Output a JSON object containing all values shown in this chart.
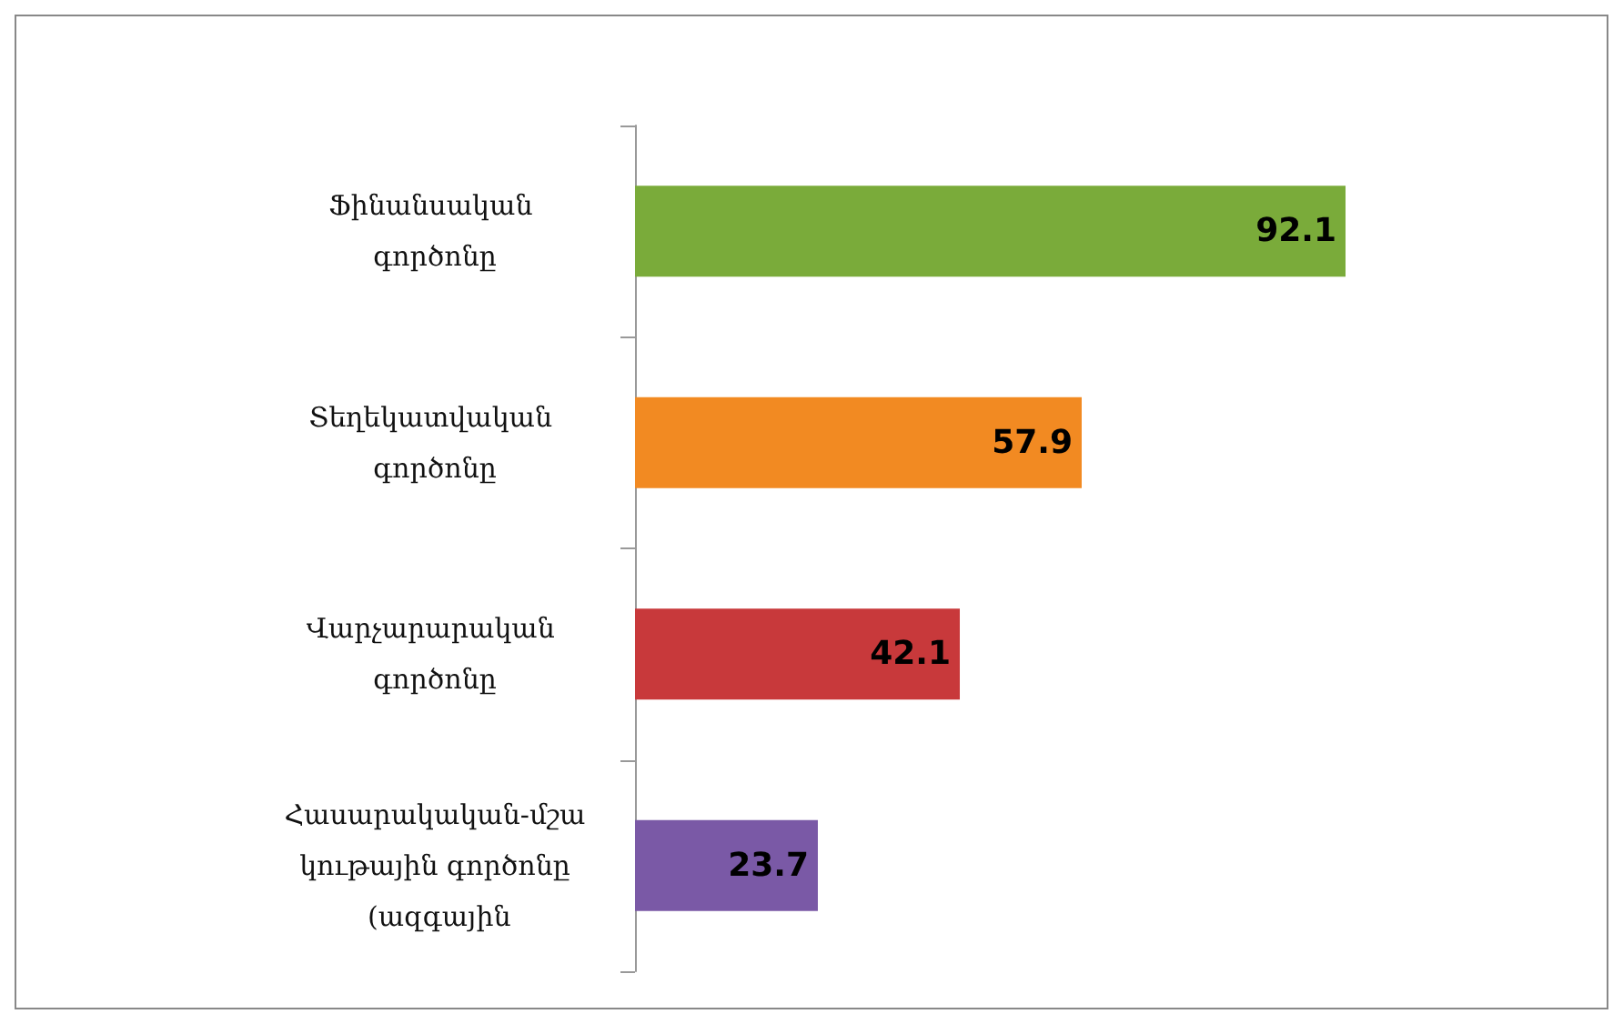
{
  "chart_data": {
    "type": "bar",
    "orientation": "horizontal",
    "categories": [
      "Ֆինանսական գործոնը",
      "Տեղեկատվական գործոնը",
      "Վարչարարական գործոնը",
      "Հասարակական-մշակութային գործոնը (ազգային"
    ],
    "values": [
      92.1,
      57.9,
      42.1,
      23.7
    ],
    "colors": [
      "#7aab3a",
      "#f28a22",
      "#c8393b",
      "#7a59a6"
    ],
    "data_labels": true,
    "grid": false
  }
}
